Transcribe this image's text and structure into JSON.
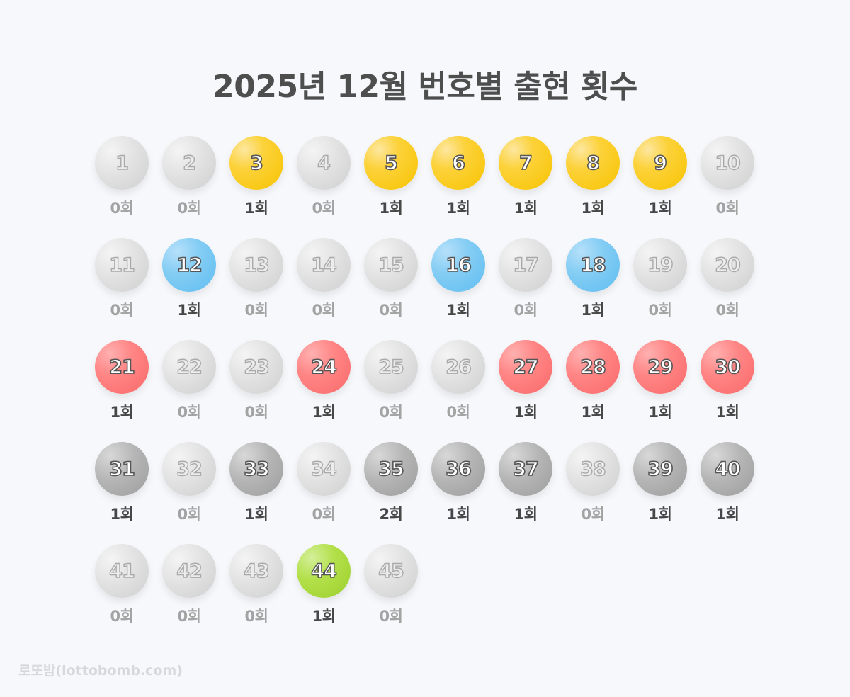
{
  "title": "2025년 12월 번호별 출현 횟수",
  "footer": "로또밤(lottobomb.com)",
  "colors": {
    "background": "#f6f8fb",
    "yellow": "#fcc800",
    "blue": "#69c3f2",
    "red": "#ff7272",
    "gray": "#aaaaaa",
    "green": "#b0de44",
    "inactive": "#d8d8d8"
  },
  "count_suffix": "회",
  "balls": [
    {
      "n": "1",
      "count": 0,
      "label": "0회",
      "color": "yellow"
    },
    {
      "n": "2",
      "count": 0,
      "label": "0회",
      "color": "yellow"
    },
    {
      "n": "3",
      "count": 1,
      "label": "1회",
      "color": "yellow"
    },
    {
      "n": "4",
      "count": 0,
      "label": "0회",
      "color": "yellow"
    },
    {
      "n": "5",
      "count": 1,
      "label": "1회",
      "color": "yellow"
    },
    {
      "n": "6",
      "count": 1,
      "label": "1회",
      "color": "yellow"
    },
    {
      "n": "7",
      "count": 1,
      "label": "1회",
      "color": "yellow"
    },
    {
      "n": "8",
      "count": 1,
      "label": "1회",
      "color": "yellow"
    },
    {
      "n": "9",
      "count": 1,
      "label": "1회",
      "color": "yellow"
    },
    {
      "n": "10",
      "count": 0,
      "label": "0회",
      "color": "yellow"
    },
    {
      "n": "11",
      "count": 0,
      "label": "0회",
      "color": "blue"
    },
    {
      "n": "12",
      "count": 1,
      "label": "1회",
      "color": "blue"
    },
    {
      "n": "13",
      "count": 0,
      "label": "0회",
      "color": "blue"
    },
    {
      "n": "14",
      "count": 0,
      "label": "0회",
      "color": "blue"
    },
    {
      "n": "15",
      "count": 0,
      "label": "0회",
      "color": "blue"
    },
    {
      "n": "16",
      "count": 1,
      "label": "1회",
      "color": "blue"
    },
    {
      "n": "17",
      "count": 0,
      "label": "0회",
      "color": "blue"
    },
    {
      "n": "18",
      "count": 1,
      "label": "1회",
      "color": "blue"
    },
    {
      "n": "19",
      "count": 0,
      "label": "0회",
      "color": "blue"
    },
    {
      "n": "20",
      "count": 0,
      "label": "0회",
      "color": "blue"
    },
    {
      "n": "21",
      "count": 1,
      "label": "1회",
      "color": "red"
    },
    {
      "n": "22",
      "count": 0,
      "label": "0회",
      "color": "red"
    },
    {
      "n": "23",
      "count": 0,
      "label": "0회",
      "color": "red"
    },
    {
      "n": "24",
      "count": 1,
      "label": "1회",
      "color": "red"
    },
    {
      "n": "25",
      "count": 0,
      "label": "0회",
      "color": "red"
    },
    {
      "n": "26",
      "count": 0,
      "label": "0회",
      "color": "red"
    },
    {
      "n": "27",
      "count": 1,
      "label": "1회",
      "color": "red"
    },
    {
      "n": "28",
      "count": 1,
      "label": "1회",
      "color": "red"
    },
    {
      "n": "29",
      "count": 1,
      "label": "1회",
      "color": "red"
    },
    {
      "n": "30",
      "count": 1,
      "label": "1회",
      "color": "red"
    },
    {
      "n": "31",
      "count": 1,
      "label": "1회",
      "color": "gray"
    },
    {
      "n": "32",
      "count": 0,
      "label": "0회",
      "color": "gray"
    },
    {
      "n": "33",
      "count": 1,
      "label": "1회",
      "color": "gray"
    },
    {
      "n": "34",
      "count": 0,
      "label": "0회",
      "color": "gray"
    },
    {
      "n": "35",
      "count": 2,
      "label": "2회",
      "color": "gray"
    },
    {
      "n": "36",
      "count": 1,
      "label": "1회",
      "color": "gray"
    },
    {
      "n": "37",
      "count": 1,
      "label": "1회",
      "color": "gray"
    },
    {
      "n": "38",
      "count": 0,
      "label": "0회",
      "color": "gray"
    },
    {
      "n": "39",
      "count": 1,
      "label": "1회",
      "color": "gray"
    },
    {
      "n": "40",
      "count": 1,
      "label": "1회",
      "color": "gray"
    },
    {
      "n": "41",
      "count": 0,
      "label": "0회",
      "color": "green"
    },
    {
      "n": "42",
      "count": 0,
      "label": "0회",
      "color": "green"
    },
    {
      "n": "43",
      "count": 0,
      "label": "0회",
      "color": "green"
    },
    {
      "n": "44",
      "count": 1,
      "label": "1회",
      "color": "green"
    },
    {
      "n": "45",
      "count": 0,
      "label": "0회",
      "color": "green"
    }
  ],
  "chart_data": {
    "type": "table",
    "title": "2025년 12월 번호별 출현 횟수",
    "xlabel": "번호",
    "ylabel": "출현 횟수",
    "categories": [
      "1",
      "2",
      "3",
      "4",
      "5",
      "6",
      "7",
      "8",
      "9",
      "10",
      "11",
      "12",
      "13",
      "14",
      "15",
      "16",
      "17",
      "18",
      "19",
      "20",
      "21",
      "22",
      "23",
      "24",
      "25",
      "26",
      "27",
      "28",
      "29",
      "30",
      "31",
      "32",
      "33",
      "34",
      "35",
      "36",
      "37",
      "38",
      "39",
      "40",
      "41",
      "42",
      "43",
      "44",
      "45"
    ],
    "values": [
      0,
      0,
      1,
      0,
      1,
      1,
      1,
      1,
      1,
      0,
      0,
      1,
      0,
      0,
      0,
      1,
      0,
      1,
      0,
      0,
      1,
      0,
      0,
      1,
      0,
      0,
      1,
      1,
      1,
      1,
      1,
      0,
      1,
      0,
      2,
      1,
      1,
      0,
      1,
      1,
      0,
      0,
      0,
      1,
      0
    ],
    "layout": {
      "columns": 10,
      "rows": 5,
      "grid": false,
      "legend": "none"
    },
    "color_groups": [
      {
        "range": "1-10",
        "color": "yellow"
      },
      {
        "range": "11-20",
        "color": "blue"
      },
      {
        "range": "21-30",
        "color": "red"
      },
      {
        "range": "31-40",
        "color": "gray"
      },
      {
        "range": "41-45",
        "color": "green"
      }
    ]
  }
}
